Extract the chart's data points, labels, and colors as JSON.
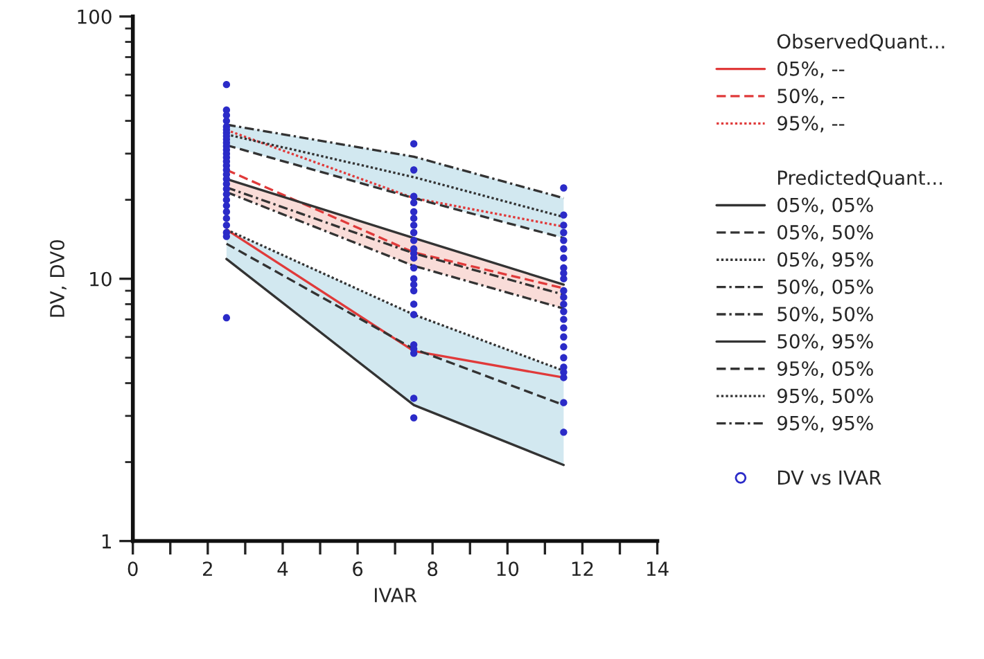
{
  "chart_data": {
    "type": "line",
    "xlabel": "IVAR",
    "ylabel": "DV, DV0",
    "annotations": [
      "ObservedQuant...",
      "PredictedQuant..."
    ],
    "x": [
      2.5,
      7.5,
      11.5
    ],
    "log": "y",
    "xlim": [
      0,
      14
    ],
    "ylim": [
      1,
      100
    ],
    "xticks": [
      0,
      {
        "value": 1,
        "label": null
      },
      2,
      {
        "value": 3,
        "label": null
      },
      4,
      {
        "value": 5,
        "label": null
      },
      6,
      {
        "value": 7,
        "label": null
      },
      8,
      {
        "value": 9,
        "label": null
      },
      10,
      {
        "value": 11,
        "label": null
      },
      12,
      {
        "value": 13,
        "label": null
      },
      14
    ],
    "yticks": [
      1,
      10,
      100
    ],
    "grid": false,
    "legend": "right",
    "series": [
      {
        "name": "05%, --",
        "color": "#e03a3a",
        "line_style": "solid",
        "values": [
          15.4,
          5.3,
          4.2
        ]
      },
      {
        "name": "50%, --",
        "color": "#e03a3a",
        "line_style": "dashed",
        "values": [
          26,
          12.6,
          9.2
        ]
      },
      {
        "name": "95%, --",
        "color": "#e03a3a",
        "line_style": "dotted",
        "values": [
          36.9,
          20.3,
          15.8
        ]
      },
      {
        "name": "05%, 05%",
        "color": "#333333",
        "line_style": "solid",
        "values": [
          11.9,
          3.3,
          1.95
        ]
      },
      {
        "name": "05%, 50%",
        "color": "#333333",
        "line_style": "dashed",
        "values": [
          13.6,
          5.4,
          3.3
        ],
        "lower": [
          11.9,
          3.3,
          1.95
        ],
        "upper": [
          15.4,
          7.3,
          4.46
        ]
      },
      {
        "name": "05%, 95%",
        "color": "#333333",
        "line_style": "dotted",
        "values": [
          15.4,
          7.3,
          4.46
        ]
      },
      {
        "name": "50%, 05%",
        "color": "#333333",
        "line_style": "dashdot",
        "values": [
          21.4,
          11.2,
          7.7
        ]
      },
      {
        "name": "50%, 50%",
        "color": "#333333",
        "line_style": "dashdot",
        "values": [
          22.3,
          12.5,
          8.7
        ],
        "lower": [
          21.4,
          11.2,
          7.7
        ],
        "upper": [
          24,
          14.3,
          9.5
        ]
      },
      {
        "name": "50%, 95%",
        "color": "#333333",
        "line_style": "solid",
        "values": [
          24,
          14.3,
          9.5
        ]
      },
      {
        "name": "95%, 05%",
        "color": "#333333",
        "line_style": "dashed",
        "values": [
          32.3,
          20.3,
          14.3
        ]
      },
      {
        "name": "95%, 50%",
        "color": "#333333",
        "line_style": "dotted",
        "values": [
          35.5,
          24.4,
          17.2
        ],
        "lower": [
          32.3,
          20.3,
          14.3
        ],
        "upper": [
          38.7,
          29.2,
          20.3
        ]
      },
      {
        "name": "95%, 95%",
        "color": "#333333",
        "line_style": "dashdot",
        "values": [
          38.7,
          29.2,
          20.3
        ]
      },
      {
        "name": "DV vs IVAR",
        "type": "scatter",
        "marker": "circle",
        "color": "#2b2bc8",
        "x": [
          2.5,
          2.5,
          2.5,
          2.5,
          2.5,
          2.5,
          2.5,
          2.5,
          2.5,
          2.5,
          2.5,
          2.5,
          2.5,
          2.5,
          2.5,
          2.5,
          2.5,
          2.5,
          2.5,
          2.5,
          2.5,
          2.5,
          2.5,
          2.5,
          2.5,
          2.5,
          2.5,
          2.5,
          2.5,
          2.5,
          7.5,
          7.5,
          7.5,
          7.5,
          7.5,
          7.5,
          7.5,
          7.5,
          7.5,
          7.5,
          7.5,
          7.5,
          7.5,
          7.5,
          7.5,
          7.5,
          7.5,
          7.5,
          7.5,
          7.5,
          7.5,
          7.5,
          7.5,
          11.5,
          11.5,
          11.5,
          11.5,
          11.5,
          11.5,
          11.5,
          11.5,
          11.5,
          11.5,
          11.5,
          11.5,
          11.5,
          11.5,
          11.5,
          11.5,
          11.5,
          11.5,
          11.5,
          11.5,
          11.5,
          11.5,
          11.5,
          11.5
        ],
        "values": [
          55,
          44,
          42,
          40,
          38,
          37,
          36,
          35,
          34,
          33,
          32,
          31,
          30,
          29,
          28,
          27,
          26,
          25,
          24,
          23,
          22,
          21,
          20,
          19,
          18,
          17,
          16,
          15,
          14.5,
          7.1,
          32.7,
          26,
          20.6,
          19.5,
          18,
          17,
          16,
          15,
          14,
          13,
          12.5,
          12,
          11,
          10,
          9.5,
          9,
          8,
          7.3,
          5.6,
          5.4,
          5.2,
          3.5,
          2.95,
          22.2,
          17.5,
          16,
          15,
          14,
          13,
          12,
          11,
          10.5,
          10,
          9,
          8.5,
          8,
          7.5,
          7,
          6.5,
          6,
          5.5,
          5,
          4.6,
          4.4,
          4.2,
          3.37,
          2.6
        ]
      }
    ]
  }
}
